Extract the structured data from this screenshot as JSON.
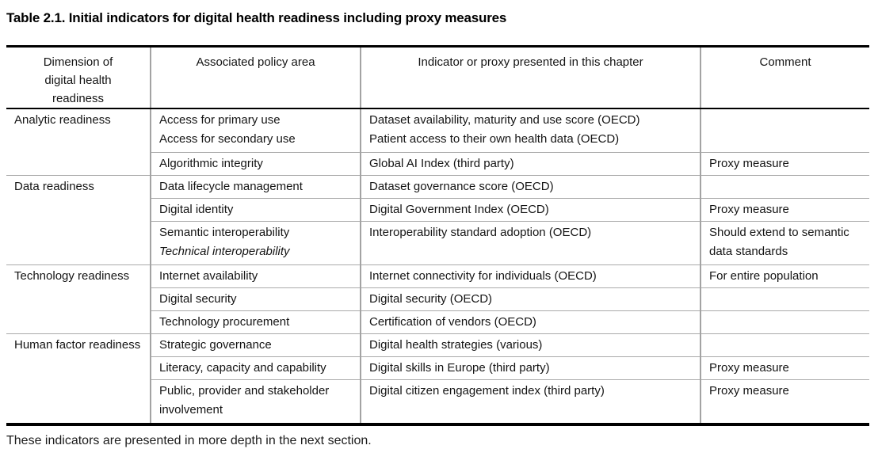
{
  "title": "Table 2.1. Initial indicators for digital health readiness including proxy measures",
  "table": {
    "headers": [
      "Dimension of digital health readiness",
      "Associated policy area",
      "Indicator or proxy presented in this chapter",
      "Comment"
    ],
    "groups": [
      {
        "dimension": "Analytic readiness",
        "rows": [
          {
            "policy": [
              "Access for primary use",
              "Access for secondary use"
            ],
            "indicator": [
              "Dataset availability, maturity and use score (OECD)",
              "Patient access to their own health data (OECD)"
            ],
            "comment": ""
          },
          {
            "policy": [
              "Algorithmic integrity"
            ],
            "indicator": [
              "Global AI Index (third party)"
            ],
            "comment": "Proxy measure"
          }
        ]
      },
      {
        "dimension": "Data readiness",
        "rows": [
          {
            "policy": [
              "Data lifecycle management"
            ],
            "indicator": [
              "Dataset governance score (OECD)"
            ],
            "comment": ""
          },
          {
            "policy": [
              "Digital identity"
            ],
            "indicator": [
              "Digital Government Index (OECD)"
            ],
            "comment": "Proxy measure"
          },
          {
            "policy": [
              "Semantic interoperability",
              "Technical interoperability"
            ],
            "policy_note": "second line italic",
            "indicator": [
              "Interoperability standard adoption (OECD)"
            ],
            "comment": "Should extend to semantic data standards"
          }
        ]
      },
      {
        "dimension": "Technology readiness",
        "rows": [
          {
            "policy": [
              "Internet availability"
            ],
            "indicator": [
              "Internet connectivity for individuals (OECD)"
            ],
            "comment": "For entire population"
          },
          {
            "policy": [
              "Digital security"
            ],
            "indicator": [
              "Digital security (OECD)"
            ],
            "comment": ""
          },
          {
            "policy": [
              "Technology procurement"
            ],
            "indicator": [
              "Certification of vendors (OECD)"
            ],
            "comment": ""
          }
        ]
      },
      {
        "dimension": "Human factor readiness",
        "rows": [
          {
            "policy": [
              "Strategic governance"
            ],
            "indicator": [
              "Digital health strategies (various)"
            ],
            "comment": ""
          },
          {
            "policy": [
              "Literacy, capacity and capability"
            ],
            "indicator": [
              "Digital skills in Europe (third party)"
            ],
            "comment": "Proxy measure"
          },
          {
            "policy": [
              "Public, provider and stakeholder involvement"
            ],
            "indicator": [
              "Digital citizen engagement index (third party)"
            ],
            "comment": "Proxy measure"
          }
        ]
      }
    ]
  },
  "caption": "These indicators are presented in more depth in the next section."
}
